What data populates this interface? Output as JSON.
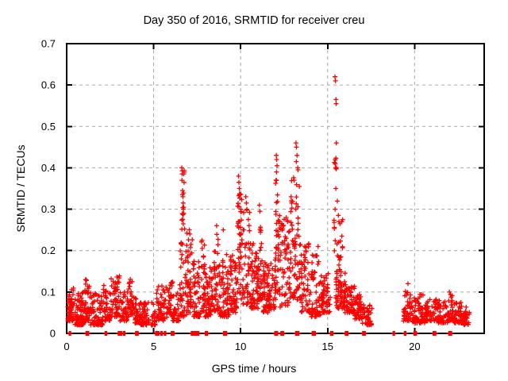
{
  "title": "Day 350 of 2016, SRMTID for receiver creu",
  "chart_data": {
    "type": "scatter",
    "title": "Day 350 of 2016, SRMTID for receiver creu",
    "xlabel": "GPS time / hours",
    "ylabel": "SRMTID / TECUs",
    "series_name": "SRMTID",
    "xlim": [
      0,
      24
    ],
    "ylim": [
      0,
      0.7
    ],
    "xticks": [
      0,
      5,
      10,
      15,
      20
    ],
    "yticks": [
      0,
      0.1,
      0.2,
      0.3,
      0.4,
      0.5,
      0.6,
      0.7
    ],
    "grid": true,
    "grid_style": "dashed",
    "legend": "none",
    "marker": "plus",
    "marker_color": "#ff0000",
    "grid_color": "#a6a6a6",
    "axis_color": "#000000",
    "background": "#ffffff",
    "notable_peaks": [
      [
        6.62,
        0.4
      ],
      [
        6.64,
        0.385
      ],
      [
        6.63,
        0.37
      ],
      [
        6.66,
        0.345
      ],
      [
        6.68,
        0.33
      ],
      [
        6.7,
        0.315
      ],
      [
        6.71,
        0.3
      ],
      [
        6.73,
        0.29
      ],
      [
        7.05,
        0.25
      ],
      [
        7.08,
        0.24
      ],
      [
        7.78,
        0.225
      ],
      [
        8.62,
        0.26
      ],
      [
        9.0,
        0.25
      ],
      [
        9.88,
        0.38
      ],
      [
        9.9,
        0.365
      ],
      [
        9.93,
        0.35
      ],
      [
        9.95,
        0.335
      ],
      [
        10.3,
        0.33
      ],
      [
        10.33,
        0.315
      ],
      [
        10.36,
        0.3
      ],
      [
        11.08,
        0.31
      ],
      [
        11.11,
        0.295
      ],
      [
        12.05,
        0.43
      ],
      [
        12.07,
        0.42
      ],
      [
        12.09,
        0.405
      ],
      [
        12.06,
        0.39
      ],
      [
        12.9,
        0.33
      ],
      [
        12.93,
        0.315
      ],
      [
        13.18,
        0.46
      ],
      [
        13.21,
        0.45
      ],
      [
        13.24,
        0.43
      ],
      [
        13.2,
        0.415
      ],
      [
        13.28,
        0.4
      ],
      [
        13.3,
        0.395
      ],
      [
        14.45,
        0.21
      ],
      [
        15.42,
        0.62
      ],
      [
        15.45,
        0.61
      ],
      [
        15.48,
        0.565
      ],
      [
        15.49,
        0.555
      ],
      [
        15.5,
        0.46
      ],
      [
        15.44,
        0.41
      ],
      [
        15.46,
        0.4
      ],
      [
        15.47,
        0.35
      ],
      [
        15.43,
        0.3
      ],
      [
        15.62,
        0.285
      ],
      [
        15.65,
        0.27
      ],
      [
        19.62,
        0.12
      ],
      [
        22.0,
        0.1
      ]
    ],
    "zero_value_times": [
      0.18,
      1.15,
      1.22,
      2.25,
      3.0,
      3.12,
      3.3,
      4.0,
      4.06,
      5.15,
      5.25,
      5.45,
      5.65,
      6.05,
      6.12,
      7.2,
      7.3,
      7.42,
      7.55,
      8.0,
      8.06,
      9.05,
      9.15,
      12.0,
      12.08,
      12.35,
      12.42,
      13.2,
      13.3,
      14.15,
      14.25,
      15.2,
      15.26,
      16.05,
      16.12,
      17.05,
      17.12,
      18.8,
      19.45,
      20.0,
      20.06,
      21.1,
      21.17,
      22.0,
      22.08
    ],
    "cluster_format": [
      "x_start_h",
      "x_end_h",
      "n_points",
      "y_min",
      "y_max",
      "density_shape"
    ],
    "density_clusters": [
      [
        0.05,
        0.45,
        60,
        0.03,
        0.115,
        1.6
      ],
      [
        0.45,
        1.0,
        70,
        0.02,
        0.1,
        1.8
      ],
      [
        1.0,
        1.35,
        45,
        0.03,
        0.13,
        1.7
      ],
      [
        1.35,
        2.1,
        80,
        0.02,
        0.1,
        1.8
      ],
      [
        2.1,
        2.5,
        40,
        0.03,
        0.12,
        1.6
      ],
      [
        2.5,
        3.05,
        55,
        0.04,
        0.145,
        1.5
      ],
      [
        3.05,
        3.5,
        40,
        0.03,
        0.1,
        1.7
      ],
      [
        3.5,
        3.85,
        35,
        0.04,
        0.135,
        1.5
      ],
      [
        3.85,
        4.25,
        35,
        0.025,
        0.09,
        1.8
      ],
      [
        4.25,
        5.15,
        70,
        0.02,
        0.075,
        1.8
      ],
      [
        5.15,
        5.8,
        55,
        0.03,
        0.115,
        1.7
      ],
      [
        5.8,
        6.1,
        30,
        0.04,
        0.125,
        1.4
      ],
      [
        6.1,
        6.45,
        30,
        0.03,
        0.1,
        1.6
      ],
      [
        6.55,
        6.8,
        18,
        0.2,
        0.4,
        1.0
      ],
      [
        6.5,
        6.9,
        40,
        0.04,
        0.22,
        1.4
      ],
      [
        6.9,
        7.25,
        45,
        0.05,
        0.25,
        1.3
      ],
      [
        7.25,
        7.7,
        55,
        0.04,
        0.18,
        1.5
      ],
      [
        7.7,
        7.95,
        30,
        0.05,
        0.225,
        1.3
      ],
      [
        7.95,
        8.45,
        60,
        0.04,
        0.16,
        1.6
      ],
      [
        8.45,
        8.75,
        35,
        0.05,
        0.24,
        1.3
      ],
      [
        8.75,
        9.35,
        70,
        0.04,
        0.2,
        1.5
      ],
      [
        9.35,
        9.8,
        55,
        0.05,
        0.19,
        1.5
      ],
      [
        9.8,
        10.1,
        45,
        0.08,
        0.345,
        1.1
      ],
      [
        10.1,
        10.55,
        45,
        0.07,
        0.3,
        1.2
      ],
      [
        10.55,
        11.0,
        60,
        0.06,
        0.22,
        1.5
      ],
      [
        11.0,
        11.25,
        30,
        0.08,
        0.28,
        1.2
      ],
      [
        11.25,
        12.0,
        90,
        0.05,
        0.185,
        1.6
      ],
      [
        12.0,
        12.25,
        40,
        0.1,
        0.38,
        1.1
      ],
      [
        12.25,
        12.85,
        60,
        0.06,
        0.28,
        1.3
      ],
      [
        12.85,
        13.45,
        70,
        0.08,
        0.38,
        1.2
      ],
      [
        13.45,
        14.0,
        55,
        0.05,
        0.22,
        1.5
      ],
      [
        14.0,
        14.6,
        55,
        0.04,
        0.19,
        1.5
      ],
      [
        14.6,
        15.15,
        55,
        0.05,
        0.145,
        1.6
      ],
      [
        15.35,
        15.6,
        14,
        0.18,
        0.43,
        1.0
      ],
      [
        15.6,
        15.9,
        8,
        0.19,
        0.285,
        1.0
      ],
      [
        15.45,
        16.0,
        70,
        0.06,
        0.185,
        1.4
      ],
      [
        16.0,
        16.55,
        55,
        0.05,
        0.12,
        1.6
      ],
      [
        16.55,
        17.0,
        45,
        0.035,
        0.095,
        1.7
      ],
      [
        17.0,
        17.55,
        45,
        0.02,
        0.07,
        1.7
      ],
      [
        19.35,
        19.8,
        40,
        0.03,
        0.115,
        1.5
      ],
      [
        19.8,
        20.6,
        65,
        0.025,
        0.095,
        1.7
      ],
      [
        20.6,
        21.3,
        55,
        0.03,
        0.085,
        1.7
      ],
      [
        21.3,
        21.9,
        45,
        0.025,
        0.08,
        1.7
      ],
      [
        21.9,
        22.25,
        35,
        0.03,
        0.095,
        1.5
      ],
      [
        22.25,
        22.75,
        45,
        0.025,
        0.075,
        1.7
      ],
      [
        22.75,
        23.2,
        35,
        0.02,
        0.065,
        1.7
      ]
    ]
  }
}
